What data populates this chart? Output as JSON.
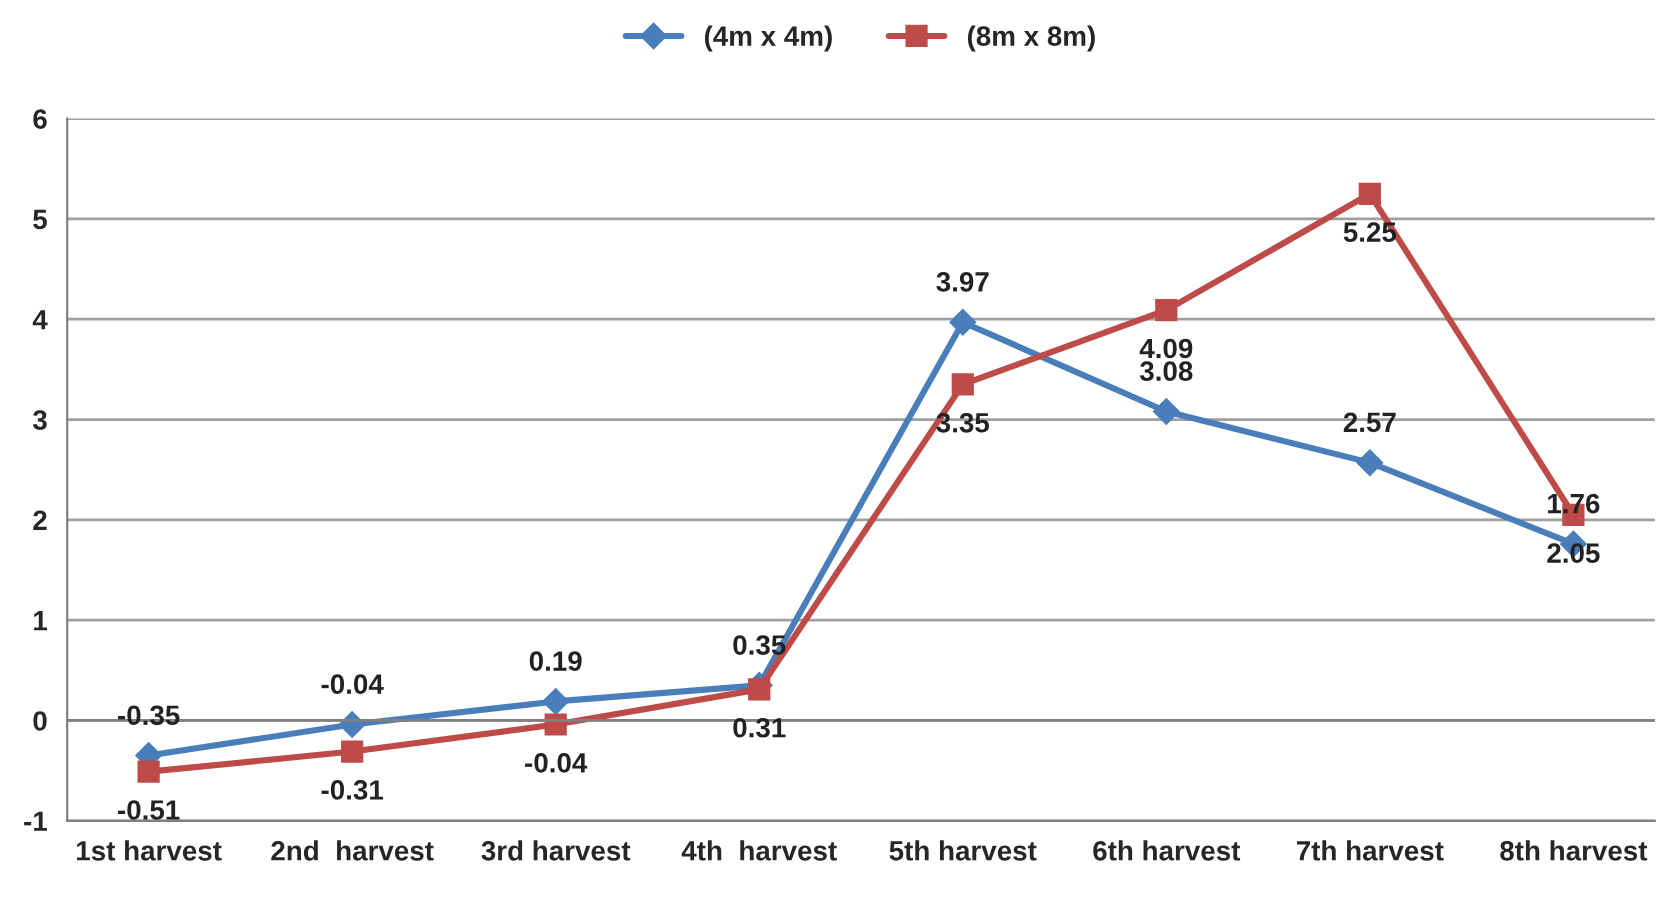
{
  "chart_data": {
    "type": "line",
    "categories": [
      "1st harvest",
      "2nd  harvest",
      "3rd harvest",
      "4th  harvest",
      "5th harvest",
      "6th harvest",
      "7th harvest",
      "8th harvest"
    ],
    "series": [
      {
        "name": "(4m x 4m)",
        "color": "#4a7ebb",
        "marker": "diamond",
        "values": [
          -0.35,
          -0.04,
          0.19,
          0.35,
          3.97,
          3.08,
          2.57,
          1.76
        ]
      },
      {
        "name": "(8m x 8m)",
        "color": "#be4b48",
        "marker": "square",
        "values": [
          -0.51,
          -0.31,
          -0.04,
          0.31,
          3.35,
          4.09,
          5.25,
          2.05
        ]
      }
    ],
    "ylim": [
      -1,
      6
    ],
    "yticks": [
      -1,
      0,
      1,
      2,
      3,
      4,
      5,
      6
    ],
    "grid": "y",
    "legend": "top",
    "data_labels": true,
    "line_style": "solid"
  }
}
